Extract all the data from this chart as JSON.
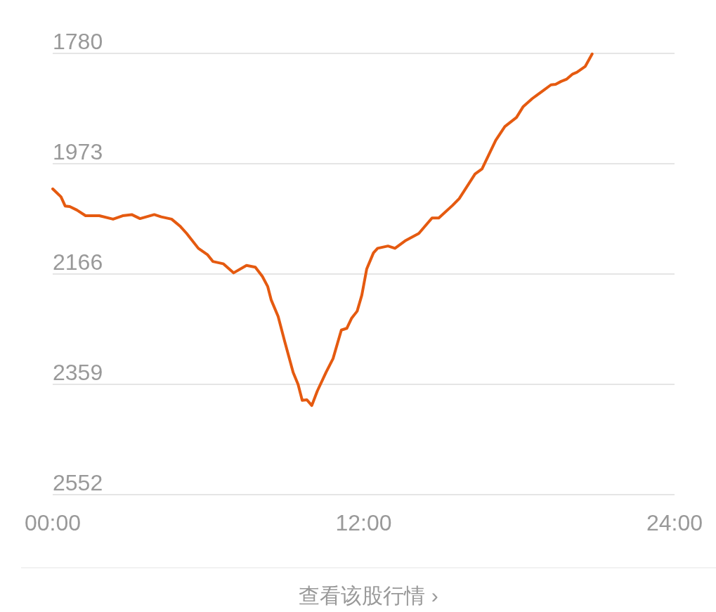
{
  "chart_data": {
    "type": "line",
    "x": [
      0,
      0.32,
      0.48,
      0.66,
      0.93,
      1.27,
      1.8,
      2.33,
      2.7,
      3.05,
      3.37,
      3.92,
      4.19,
      4.59,
      4.91,
      5.17,
      5.62,
      5.97,
      6.18,
      6.58,
      6.98,
      7.48,
      7.82,
      8.09,
      8.3,
      8.43,
      8.7,
      8.96,
      9.28,
      9.47,
      9.63,
      9.81,
      10,
      10.21,
      10.55,
      10.82,
      11.14,
      11.35,
      11.54,
      11.75,
      11.93,
      12.12,
      12.38,
      12.54,
      12.94,
      13.21,
      13.6,
      14.13,
      14.64,
      14.9,
      15.43,
      15.69,
      16.3,
      16.57,
      17.1,
      17.45,
      17.9,
      18.16,
      18.51,
      18.96,
      19.23,
      19.41,
      19.62,
      19.84,
      20.07,
      20.23,
      20.55,
      20.82
    ],
    "series": [
      {
        "color": "#e55a10",
        "values": [
          2017,
          2031,
          2047,
          2048,
          2054,
          2064,
          2064,
          2070,
          2064,
          2062,
          2069,
          2062,
          2066,
          2070,
          2082,
          2095,
          2121,
          2132,
          2144,
          2148,
          2164,
          2151,
          2154,
          2170,
          2188,
          2211,
          2240,
          2285,
          2338,
          2359,
          2387,
          2386,
          2396,
          2371,
          2338,
          2314,
          2264,
          2261,
          2243,
          2231,
          2203,
          2157,
          2129,
          2121,
          2117,
          2121,
          2108,
          2095,
          2068,
          2068,
          2046,
          2034,
          1991,
          1982,
          1932,
          1908,
          1892,
          1873,
          1859,
          1844,
          1835,
          1834,
          1829,
          1825,
          1816,
          1813,
          1803,
          1781
        ]
      }
    ],
    "xlim": [
      0,
      24
    ],
    "xticks": [
      {
        "value": 0,
        "label": "00:00"
      },
      {
        "value": 12,
        "label": "12:00"
      },
      {
        "value": 24,
        "label": "24:00"
      }
    ],
    "ylim": [
      2552,
      1780
    ],
    "yticks": [
      1780,
      1973,
      2166,
      2359,
      2552
    ],
    "grid": "y",
    "marker": "none",
    "line_style": "solid",
    "annotations": [
      "查看该股行情 ›"
    ]
  }
}
